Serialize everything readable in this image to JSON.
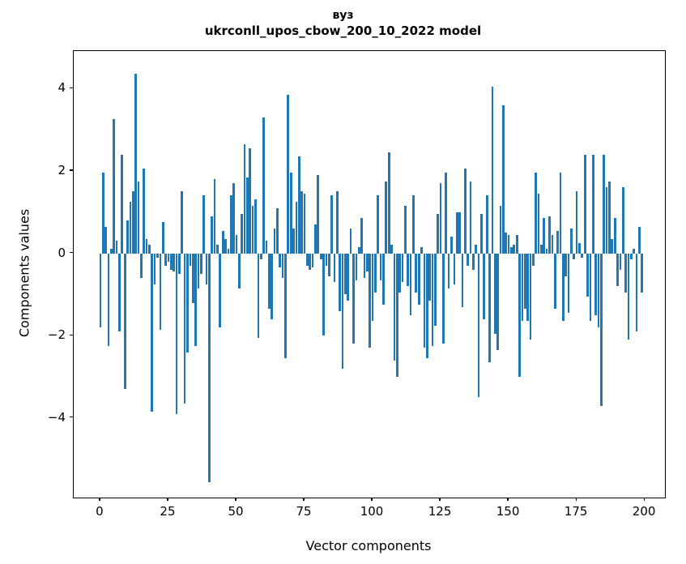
{
  "title": {
    "line1": "вуз",
    "line2": "ukrconll_upos_cbow_200_10_2022 model"
  },
  "chart_data": {
    "type": "bar",
    "title": "вуз",
    "subtitle": "ukrconll_upos_cbow_200_10_2022 model",
    "xlabel": "Vector components",
    "ylabel": "Components values",
    "bar_color": "#1f77b4",
    "background_color": "#ffffff",
    "grid": false,
    "legend": null,
    "x_ticks": [
      0,
      25,
      50,
      75,
      100,
      125,
      150,
      175,
      200
    ],
    "y_ticks": [
      4,
      2,
      0,
      -2,
      -4
    ],
    "y_tick_labels": [
      "4",
      "2",
      "0",
      "−2",
      "−4"
    ],
    "xlim": [
      -9.8,
      207.4
    ],
    "ylim": [
      -5.93,
      4.91
    ],
    "x_description": "component index 0..199, one bar per vector component",
    "values": [
      -1.8,
      1.95,
      0.65,
      -2.25,
      0.1,
      3.25,
      0.3,
      -1.9,
      2.4,
      -3.3,
      0.8,
      1.25,
      1.5,
      4.35,
      1.75,
      -0.6,
      2.05,
      0.35,
      0.2,
      -3.85,
      -0.75,
      -0.1,
      -1.85,
      0.75,
      -0.3,
      -0.2,
      -0.4,
      -0.45,
      -3.9,
      -0.5,
      1.5,
      -3.65,
      -2.4,
      -0.3,
      -1.2,
      -2.25,
      -0.85,
      -0.5,
      1.4,
      -0.75,
      -5.55,
      0.9,
      1.8,
      0.2,
      -1.8,
      0.55,
      0.35,
      0.1,
      1.4,
      1.7,
      0.45,
      -0.85,
      0.95,
      2.65,
      1.85,
      2.55,
      1.15,
      1.3,
      -2.05,
      -0.15,
      3.3,
      0.3,
      -1.35,
      -1.6,
      0.6,
      1.1,
      -0.35,
      -0.6,
      -2.55,
      3.85,
      1.95,
      0.6,
      1.25,
      2.35,
      1.5,
      1.45,
      -0.3,
      -0.4,
      -0.35,
      0.7,
      1.9,
      -0.15,
      -2.0,
      -0.3,
      -0.55,
      1.4,
      -0.7,
      1.5,
      -1.4,
      -2.8,
      -1.0,
      -1.15,
      0.6,
      -2.2,
      -0.65,
      0.15,
      0.85,
      -0.6,
      -0.45,
      -2.3,
      -1.65,
      -0.95,
      1.4,
      -0.65,
      -1.25,
      1.75,
      2.45,
      0.2,
      -2.6,
      -3.0,
      -0.95,
      -0.7,
      1.15,
      -0.8,
      -1.5,
      1.4,
      -0.95,
      -1.25,
      0.15,
      -2.3,
      -2.55,
      -1.15,
      -2.25,
      -1.75,
      0.95,
      1.7,
      -2.2,
      1.95,
      -0.85,
      0.4,
      -0.75,
      1.0,
      1.0,
      -1.3,
      2.05,
      -0.3,
      1.75,
      -0.4,
      0.2,
      -3.5,
      0.95,
      -1.6,
      1.4,
      -2.65,
      4.05,
      -1.95,
      -2.35,
      1.15,
      3.6,
      0.5,
      0.45,
      0.15,
      0.2,
      0.45,
      -3.0,
      -1.65,
      -1.35,
      -1.65,
      -2.1,
      -0.3,
      1.95,
      1.45,
      0.2,
      0.85,
      0.1,
      0.9,
      0.45,
      -1.35,
      0.55,
      1.95,
      -1.65,
      -0.55,
      -1.45,
      0.6,
      -0.15,
      1.5,
      0.25,
      -0.1,
      2.4,
      -1.05,
      -1.65,
      2.4,
      -1.5,
      -1.8,
      -3.7,
      2.4,
      1.6,
      1.75,
      0.35,
      0.85,
      -0.8,
      -0.4,
      1.6,
      -0.95,
      -2.1,
      -0.15,
      0.1,
      -1.9,
      0.65,
      -0.95
    ]
  }
}
